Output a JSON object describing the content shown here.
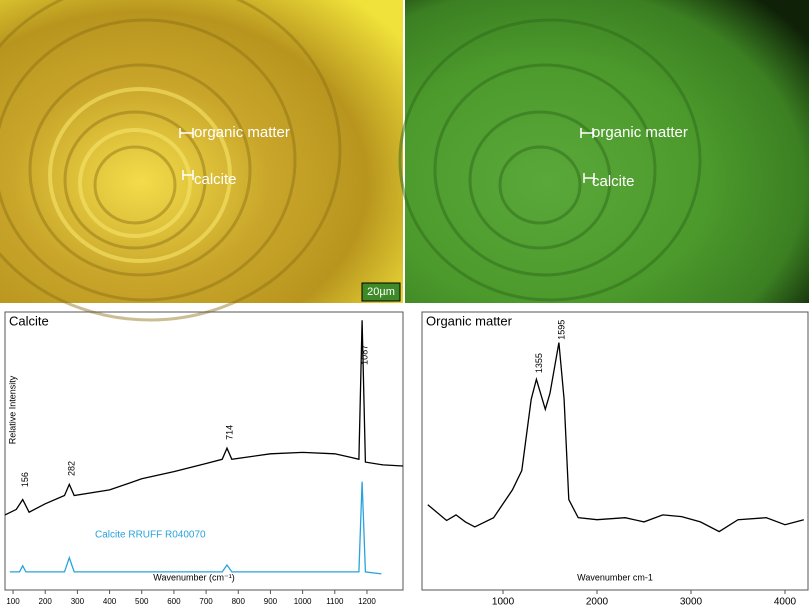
{
  "micrographs": [
    {
      "labels": [
        "organic matter",
        "calcite"
      ],
      "scale_bar": "20µm"
    },
    {
      "labels": [
        "organic matter",
        "calcite"
      ]
    }
  ],
  "chart_data": [
    {
      "type": "line",
      "title": "Calcite",
      "ylabel": "Relative Intensity",
      "xlabel": "Wavenumber (cm⁻¹)",
      "xlim": [
        75,
        1312
      ],
      "ylim": [
        0,
        100
      ],
      "xticks": [
        100,
        200,
        300,
        400,
        500,
        600,
        700,
        800,
        900,
        1000,
        1100,
        1200
      ],
      "series": [
        {
          "color": "#000000",
          "x": [
            75,
            110,
            130,
            150,
            200,
            260,
            275,
            290,
            400,
            500,
            600,
            700,
            750,
            765,
            780,
            900,
            1000,
            1100,
            1150,
            1175,
            1185,
            1195,
            1250,
            1312
          ],
          "values": [
            27,
            29,
            32.5,
            28,
            31,
            34,
            38,
            34,
            36,
            40,
            42.6,
            45.5,
            47,
            51,
            47,
            49,
            49.5,
            49,
            47.7,
            47,
            97,
            46,
            45,
            44.6
          ]
        },
        {
          "name": "Calcite RRUFF R040070",
          "color": "#29a3dc",
          "x": [
            90,
            120,
            130,
            140,
            260,
            275,
            290,
            750,
            765,
            780,
            1175,
            1185,
            1195,
            1245
          ],
          "values": [
            6.5,
            6.5,
            8.7,
            6.5,
            6.5,
            11.6,
            6.5,
            6.5,
            9,
            6.5,
            6.5,
            39,
            6.5,
            5.8
          ]
        }
      ],
      "annotations": [
        {
          "label": "156",
          "x": 130,
          "y": 37
        },
        {
          "label": "282",
          "x": 275,
          "y": 41
        },
        {
          "label": "714",
          "x": 765,
          "y": 54
        },
        {
          "label": "1087",
          "x": 1185,
          "y": 81
        }
      ]
    },
    {
      "type": "line",
      "title": "Organic matter",
      "xlabel": "Wavenumber cm-1",
      "xlim": [
        138,
        4245
      ],
      "ylim": [
        0,
        100
      ],
      "xticks": [
        1000,
        2000,
        3000,
        4000
      ],
      "series": [
        {
          "color": "#000000",
          "x": [
            200,
            400,
            500,
            600,
            700,
            900,
            1100,
            1200,
            1300,
            1355,
            1450,
            1500,
            1595,
            1650,
            1700,
            1800,
            2000,
            2300,
            2500,
            2700,
            2900,
            3100,
            3300,
            3500,
            3800,
            4000,
            4200
          ],
          "values": [
            30.7,
            25,
            27,
            24.5,
            22.7,
            26,
            36,
            43,
            68.6,
            75.8,
            65,
            70.8,
            89,
            68.6,
            32.5,
            26,
            25.3,
            26,
            24.5,
            27,
            26.4,
            24.5,
            21,
            25.3,
            26,
            23.5,
            25.3
          ]
        }
      ],
      "annotations": [
        {
          "label": "1355",
          "x": 1355,
          "y": 78
        },
        {
          "label": "1595",
          "x": 1595,
          "y": 90
        }
      ]
    }
  ]
}
